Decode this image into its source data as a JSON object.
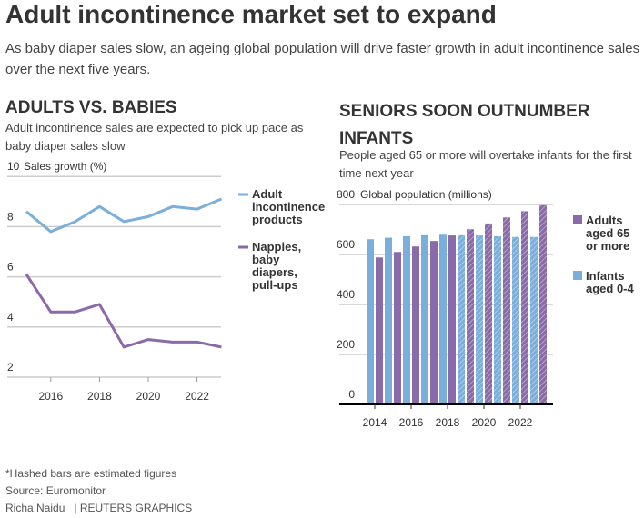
{
  "title": "Adult incontinence market set to expand",
  "subtitle": "As baby diaper sales slow, an ageing global population will drive faster growth in adult incontinence sales over the next five years.",
  "footer": {
    "note": "*Hashed bars are estimated figures",
    "source": "Source: Euromonitor",
    "credit": "Richa Naidu",
    "brand": "| REUTERS GRAPHICS"
  },
  "chart_data": [
    {
      "type": "line",
      "title": "ADULTS VS. BABIES",
      "subtitle": "Adult incontinence sales are expected to pick up pace as baby diaper sales slow",
      "ylabel": "Sales growth (%)",
      "ylim": [
        2,
        10
      ],
      "yticks": [
        "2",
        "4",
        "6",
        "8",
        "10"
      ],
      "xticks": [
        "2016",
        "2018",
        "2020",
        "2022"
      ],
      "x": [
        2015,
        2016,
        2017,
        2018,
        2019,
        2020,
        2021,
        2022,
        2023
      ],
      "series": [
        {
          "name": "Adult incontinence products",
          "color": "#7aaedb",
          "values": [
            8.6,
            7.8,
            8.2,
            8.8,
            8.2,
            8.4,
            8.8,
            8.7,
            9.1
          ]
        },
        {
          "name": "Nappies, baby diapers, pull-ups",
          "color": "#8a6aa8",
          "values": [
            6.1,
            4.6,
            4.6,
            4.9,
            3.2,
            3.5,
            3.4,
            3.4,
            3.2
          ]
        }
      ]
    },
    {
      "type": "bar",
      "title": "SENIORS SOON OUTNUMBER INFANTS",
      "subtitle": "People aged 65 or more will overtake infants for the first time next year",
      "ylabel": "Global population (millions)",
      "ylim": [
        0,
        800
      ],
      "yticks": [
        "0",
        "200",
        "400",
        "600",
        "800"
      ],
      "xticks": [
        "2014",
        "2016",
        "2018",
        "2020",
        "2022"
      ],
      "x": [
        2014,
        2015,
        2016,
        2017,
        2018,
        2019,
        2020,
        2021,
        2022,
        2023
      ],
      "estimated_from": 2019,
      "series": [
        {
          "name": "Infants aged 0-4",
          "color": "#7aaedb",
          "values": [
            661,
            667,
            673,
            677,
            679,
            677,
            676,
            673,
            670,
            670
          ]
        },
        {
          "name": "Adults aged 65 or more",
          "color": "#8a6aa8",
          "values": [
            588,
            610,
            632,
            654,
            676,
            701,
            724,
            748,
            773,
            797
          ]
        }
      ]
    }
  ]
}
